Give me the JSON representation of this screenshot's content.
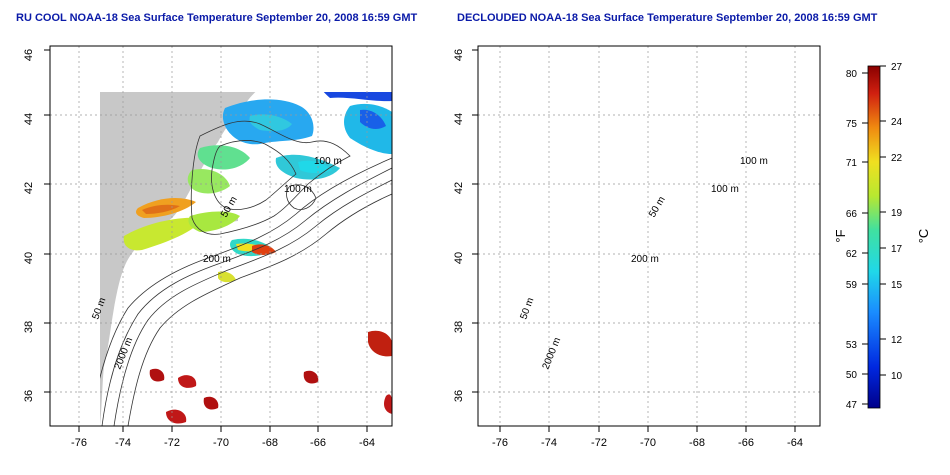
{
  "titles": {
    "left": "RU COOL NOAA-18 Sea Surface Temperature September 20, 2008 16:59 GMT",
    "right": "DECLOUDED NOAA-18 Sea Surface Temperature September 20, 2008 16:59 GMT"
  },
  "axes": {
    "lat_ticks": [
      "46",
      "44",
      "42",
      "40",
      "38",
      "36"
    ],
    "lon_ticks": [
      "-76",
      "-74",
      "-72",
      "-70",
      "-68",
      "-66",
      "-64"
    ]
  },
  "contour_labels": {
    "left": [
      "100 m",
      "100 m",
      "50 m",
      "200 m",
      "50 m",
      "2000 m"
    ],
    "right": [
      "100 m",
      "100 m",
      "50 m",
      "200 m",
      "50 m",
      "2000 m"
    ]
  },
  "colorbar": {
    "fahrenheit_ticks": [
      "80",
      "75",
      "71",
      "66",
      "62",
      "59",
      "53",
      "50",
      "47"
    ],
    "celsius_ticks": [
      "27",
      "24",
      "22",
      "19",
      "17",
      "15",
      "12",
      "10"
    ],
    "f_label": "°F",
    "c_label": "°C"
  },
  "colors": {
    "land": "#c8c8c8",
    "water": "#ffffff",
    "title": "#0a1aa8",
    "warm": "#b01010",
    "cold": "#0020c0"
  }
}
